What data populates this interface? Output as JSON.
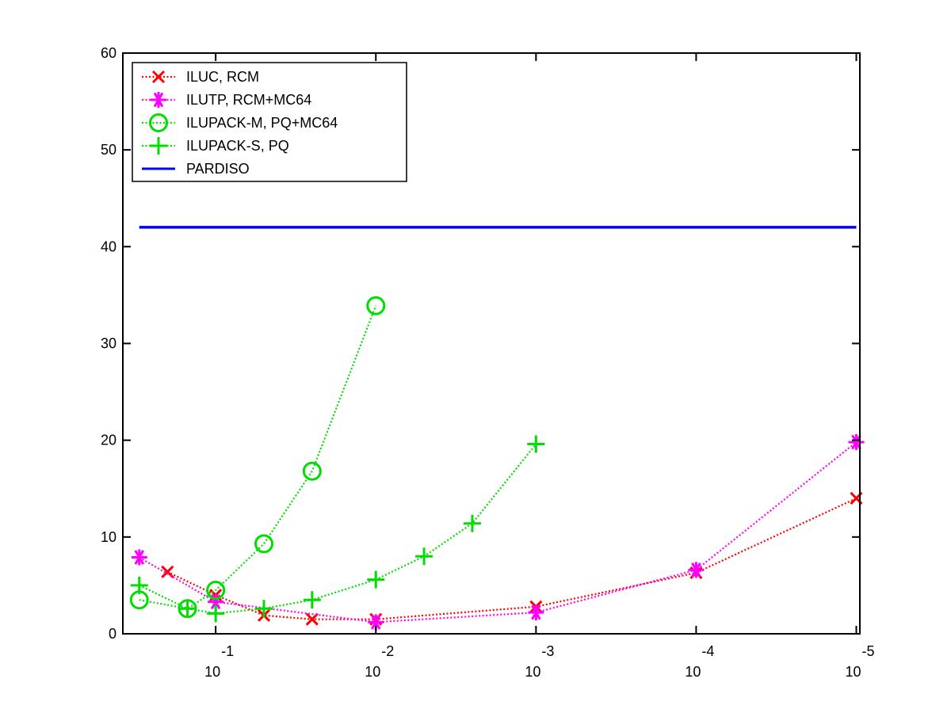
{
  "chart_data": {
    "type": "line",
    "x_scale": "log",
    "x_reversed": true,
    "xlim": [
      0.38,
      9.5e-06
    ],
    "ylim": [
      0,
      60
    ],
    "y_ticks": [
      0,
      10,
      20,
      30,
      40,
      50,
      60
    ],
    "x_ticks": [
      {
        "value": 0.1,
        "base": "10",
        "exp": "-1"
      },
      {
        "value": 0.01,
        "base": "10",
        "exp": "-2"
      },
      {
        "value": 0.001,
        "base": "10",
        "exp": "-3"
      },
      {
        "value": 0.0001,
        "base": "10",
        "exp": "-4"
      },
      {
        "value": 1e-05,
        "base": "10",
        "exp": "-5"
      }
    ],
    "grid": false,
    "legend_position": "top-left",
    "series": [
      {
        "name": "ILUC, RCM",
        "color": "#ff0000",
        "marker": "x",
        "line_style": "dotted",
        "x": [
          0.2,
          0.1,
          0.05,
          0.025,
          0.01,
          0.001,
          0.0001,
          1e-05
        ],
        "y": [
          6.4,
          4.0,
          1.9,
          1.5,
          1.5,
          2.8,
          6.3,
          14.0
        ]
      },
      {
        "name": "ILUTP, RCM+MC64",
        "color": "#ff00ff",
        "marker": "asterisk",
        "line_style": "dotted",
        "x": [
          0.3,
          0.1,
          0.01,
          0.001,
          0.0001,
          1e-05
        ],
        "y": [
          7.9,
          3.3,
          1.2,
          2.2,
          6.6,
          19.8
        ]
      },
      {
        "name": "ILUPACK-M, PQ+MC64",
        "color": "#00dd00",
        "marker": "circle",
        "line_style": "dotted",
        "x": [
          0.3,
          0.15,
          0.1,
          0.05,
          0.025,
          0.01
        ],
        "y": [
          3.5,
          2.6,
          4.5,
          9.3,
          16.8,
          33.9
        ]
      },
      {
        "name": "ILUPACK-S, PQ",
        "color": "#00dd00",
        "marker": "plus",
        "line_style": "dotted",
        "x": [
          0.3,
          0.15,
          0.1,
          0.05,
          0.025,
          0.01,
          0.005,
          0.0025,
          0.001
        ],
        "y": [
          5.0,
          2.6,
          2.1,
          2.6,
          3.5,
          5.6,
          8.0,
          11.4,
          19.6
        ]
      },
      {
        "name": "PARDISO",
        "color": "#0000ff",
        "marker": "none",
        "line_style": "solid",
        "x": [
          0.3,
          1e-05
        ],
        "y": [
          42,
          42
        ]
      }
    ]
  }
}
